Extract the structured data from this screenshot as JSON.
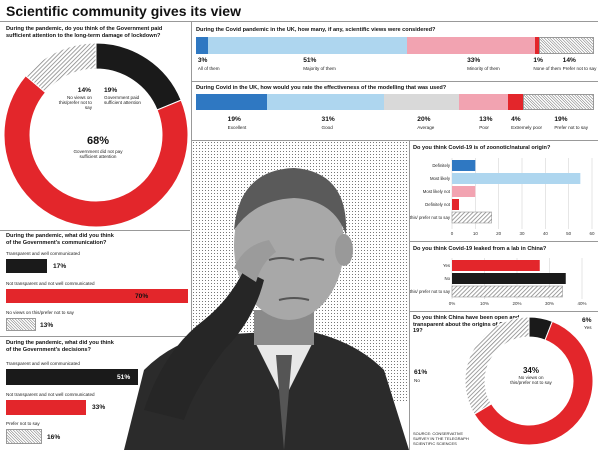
{
  "title": "Scientific community gives its view",
  "colors": {
    "red": "#e3262b",
    "black": "#1a1a1a",
    "blue": "#2f78c2",
    "lightblue": "#aed6ef",
    "pink": "#f2a3b1",
    "grey": "#d9d9d9",
    "hatch": "#999999"
  },
  "chart_data": [
    {
      "id": "lockdown",
      "type": "pie",
      "title": "During the pandemic, do you think of the Government paid sufficient attention to the long-term damage of lockdown?",
      "slices": [
        {
          "label": "Government paid sufficient attention",
          "value": 19,
          "pct": "19%"
        },
        {
          "label": "Government did not pay sufficient attention",
          "value": 68,
          "pct": "68%"
        },
        {
          "label": "No views on this/prefer not to say",
          "value": 14,
          "pct": "14%"
        }
      ]
    },
    {
      "id": "views",
      "type": "bar",
      "title": "During the Covid pandemic in the UK, how many, if any, scientific views were considered?",
      "segments": [
        {
          "label": "All of them",
          "value": 3,
          "pct": "3%"
        },
        {
          "label": "Majority of them",
          "value": 51,
          "pct": "51%"
        },
        {
          "label": "Minority of them",
          "value": 33,
          "pct": "33%"
        },
        {
          "label": "None of them",
          "value": 1,
          "pct": "1%"
        },
        {
          "label": "Prefer not to say",
          "value": 14,
          "pct": "14%"
        }
      ]
    },
    {
      "id": "modelling",
      "type": "bar",
      "title": "During Covid in the UK, how would you rate the effectiveness of the modelling that was used?",
      "segments": [
        {
          "label": "Excellent",
          "value": 19,
          "pct": "19%"
        },
        {
          "label": "Good",
          "value": 31,
          "pct": "31%"
        },
        {
          "label": "Average",
          "value": 20,
          "pct": "20%"
        },
        {
          "label": "Poor",
          "value": 13,
          "pct": "13%"
        },
        {
          "label": "Extremely poor",
          "value": 4,
          "pct": "4%"
        },
        {
          "label": "Prefer not to say",
          "value": 19,
          "pct": "19%"
        }
      ]
    },
    {
      "id": "communication",
      "type": "bar",
      "title": "During the pandemic, what did you think of the Government's communication?",
      "series": [
        {
          "label": "Transparent and well communicated",
          "value": 17,
          "pct": "17%"
        },
        {
          "label": "Not transparent and not well communicated",
          "value": 70,
          "pct": "70%"
        },
        {
          "label": "No views on this/prefer not to say",
          "value": 13,
          "pct": "13%"
        }
      ]
    },
    {
      "id": "decisions",
      "type": "bar",
      "title": "During the pandemic, what did you think of the Government's decisions?",
      "series": [
        {
          "label": "Transparent and well communicated",
          "value": 51,
          "pct": "51%"
        },
        {
          "label": "Not transparent and not well communicated",
          "value": 33,
          "pct": "33%"
        },
        {
          "label": "Prefer not to say",
          "value": 16,
          "pct": "16%"
        }
      ]
    },
    {
      "id": "zoonotic",
      "type": "bar",
      "title": "Do you think Covid-19 is of zoonotic/natural origin?",
      "categories": [
        "Definitely",
        "Most likely",
        "Most likely not",
        "Definitely not",
        "No views on this/ prefer not to say"
      ],
      "values": [
        10,
        55,
        10,
        3,
        17
      ],
      "xlim": [
        0,
        60
      ],
      "xticks": [
        "0",
        "10",
        "20",
        "30",
        "40",
        "50",
        "60"
      ]
    },
    {
      "id": "lab",
      "type": "bar",
      "title": "Do you think Covid-19 leaked from a lab in China?",
      "categories": [
        "Yes",
        "No",
        "No views on this/ prefer not to say"
      ],
      "values": [
        27,
        35,
        34
      ],
      "xlim": [
        0,
        40
      ],
      "xticks": [
        "0",
        "10",
        "20",
        "30",
        "40"
      ],
      "xtick_suffix": "%"
    },
    {
      "id": "china",
      "type": "pie",
      "title": "Do you think China have been open and transparent about the origins of Covid-19?",
      "slices": [
        {
          "label": "Yes",
          "value": 6,
          "pct": "6%"
        },
        {
          "label": "No",
          "value": 61,
          "pct": "61%"
        },
        {
          "label": "No views on this/prefer not to say",
          "value": 34,
          "pct": "34%"
        }
      ]
    }
  ],
  "source": "SOURCE: CONSERVATIVE SURVEY IN THE TELEGRAPH SCIENTIFIC SCIENCES"
}
